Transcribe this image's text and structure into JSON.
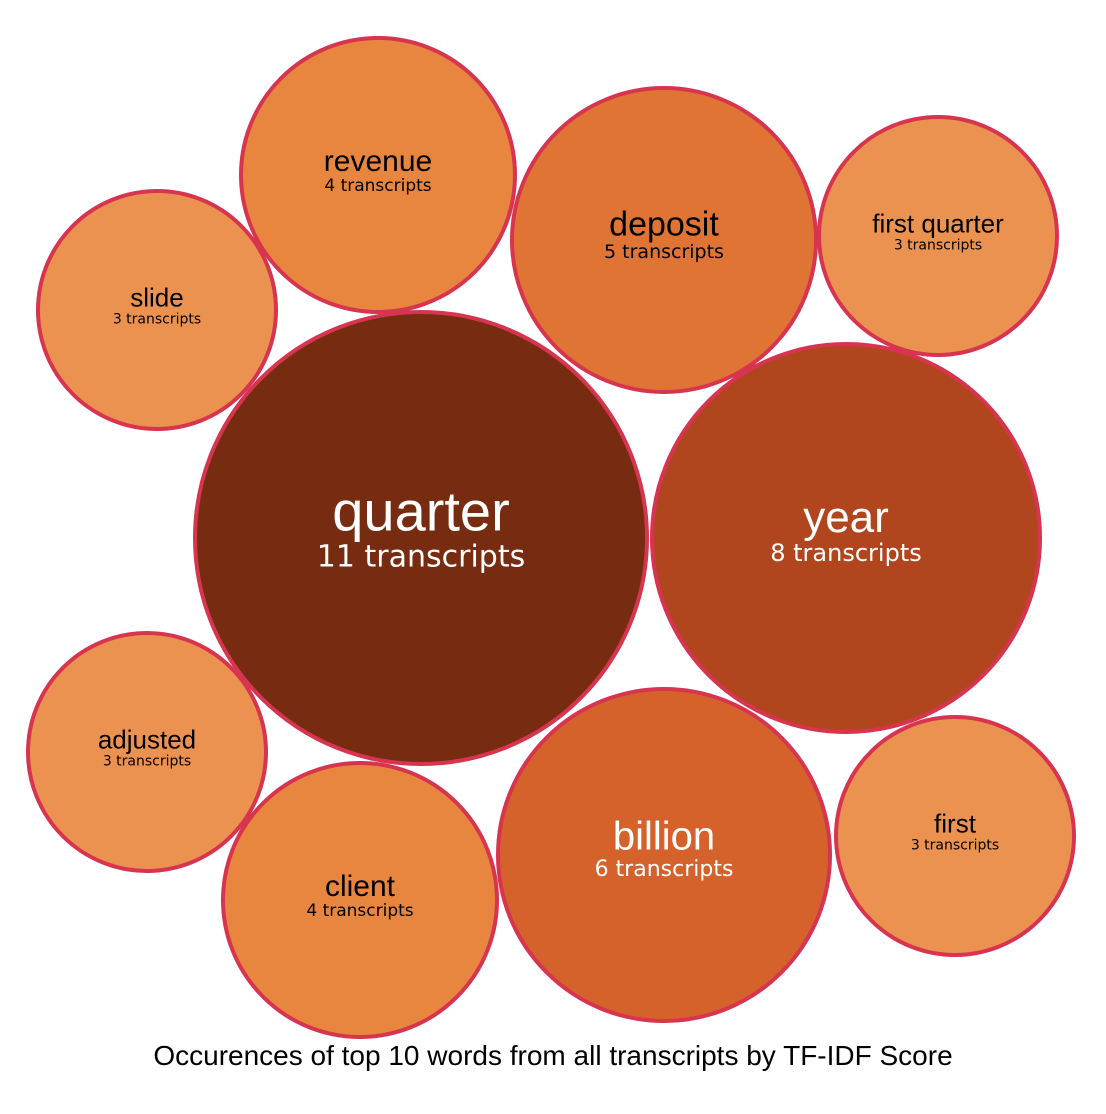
{
  "chart_data": {
    "type": "bubble",
    "title": "Occurences of top 10 words from all transcripts by TF-IDF Score",
    "unit_label": "transcripts",
    "bubbles": [
      {
        "word": "quarter",
        "count": 11,
        "count_label": "11 transcripts",
        "color": "#772b11"
      },
      {
        "word": "year",
        "count": 8,
        "count_label": "8 transcripts",
        "color": "#b1461e"
      },
      {
        "word": "billion",
        "count": 6,
        "count_label": "6 transcripts",
        "color": "#d5622b"
      },
      {
        "word": "deposit",
        "count": 5,
        "count_label": "5 transcripts",
        "color": "#e07434"
      },
      {
        "word": "revenue",
        "count": 4,
        "count_label": "4 transcripts",
        "color": "#e8853f"
      },
      {
        "word": "client",
        "count": 4,
        "count_label": "4 transcripts",
        "color": "#e8853f"
      },
      {
        "word": "slide",
        "count": 3,
        "count_label": "3 transcripts",
        "color": "#ec9250"
      },
      {
        "word": "first quarter",
        "count": 3,
        "count_label": "3 transcripts",
        "color": "#ec9250"
      },
      {
        "word": "adjusted",
        "count": 3,
        "count_label": "3 transcripts",
        "color": "#ec9250"
      },
      {
        "word": "first",
        "count": 3,
        "count_label": "3 transcripts",
        "color": "#ec9250"
      }
    ],
    "stroke_color": "#d6344f",
    "light_text_color": "#ffffff",
    "dark_text_color": "#000000"
  }
}
